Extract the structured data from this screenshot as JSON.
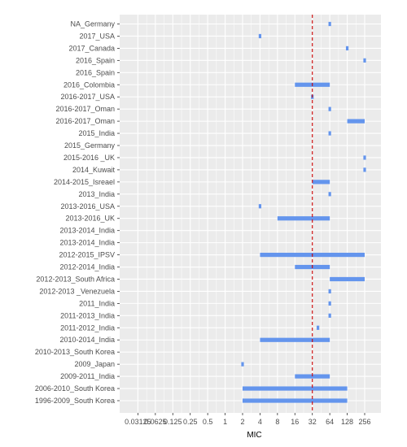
{
  "chart_data": {
    "type": "range-bar",
    "xlabel": "MIC",
    "ylabel": "",
    "title": "",
    "x_scale": "log2",
    "x_ticks": [
      {
        "value": 0.03125,
        "label": "0.03125"
      },
      {
        "value": 0.0625,
        "label": "0.0625"
      },
      {
        "value": 0.125,
        "label": "0.125"
      },
      {
        "value": 0.25,
        "label": "0.25"
      },
      {
        "value": 0.5,
        "label": "0.5"
      },
      {
        "value": 1,
        "label": "1"
      },
      {
        "value": 2,
        "label": "2"
      },
      {
        "value": 4,
        "label": "4"
      },
      {
        "value": 8,
        "label": "8"
      },
      {
        "value": 16,
        "label": "16"
      },
      {
        "value": 32,
        "label": "32"
      },
      {
        "value": 64,
        "label": "64"
      },
      {
        "value": 128,
        "label": "128"
      },
      {
        "value": 256,
        "label": "256"
      }
    ],
    "xlim": [
      0.0156,
      512
    ],
    "reference_line": {
      "value": 32,
      "color": "#cc0000",
      "style": "dashed"
    },
    "bar_color": "#6495ED",
    "grid": true,
    "panel_color": "#EBEBEB",
    "categories": [
      {
        "label": "NA_Germany",
        "min": 64,
        "max": 64
      },
      {
        "label": "2017_USA",
        "min": 4,
        "max": 4
      },
      {
        "label": "2017_Canada",
        "min": 128,
        "max": 128
      },
      {
        "label": "2016_Spain",
        "min": 256,
        "max": 256
      },
      {
        "label": "2016_Spain",
        "min": null,
        "max": null
      },
      {
        "label": "2016_Colombia",
        "min": 16,
        "max": 64
      },
      {
        "label": "2016-2017_USA",
        "min": 32,
        "max": 32
      },
      {
        "label": "2016-2017_Oman",
        "min": 64,
        "max": 64
      },
      {
        "label": "2016-2017_Oman",
        "min": 128,
        "max": 256
      },
      {
        "label": "2015_India",
        "min": 64,
        "max": 64
      },
      {
        "label": "2015_Germany",
        "min": null,
        "max": null
      },
      {
        "label": "2015-2016 _UK",
        "min": 256,
        "max": 256
      },
      {
        "label": "2014_Kuwait",
        "min": 256,
        "max": 256
      },
      {
        "label": "2014-2015_Isreael",
        "min": 32,
        "max": 64
      },
      {
        "label": "2013_India",
        "min": 64,
        "max": 64
      },
      {
        "label": "2013-2016_USA",
        "min": 4,
        "max": 4
      },
      {
        "label": "2013-2016_UK",
        "min": 8,
        "max": 64
      },
      {
        "label": "2013-2014_India",
        "min": null,
        "max": null
      },
      {
        "label": "2013-2014_India",
        "min": null,
        "max": null
      },
      {
        "label": "2012-2015_IPSV",
        "min": 4,
        "max": 256
      },
      {
        "label": "2012-2014_India",
        "min": 16,
        "max": 64
      },
      {
        "label": "2012-2013_South Africa",
        "min": 64,
        "max": 256
      },
      {
        "label": "2012-2013 _Venezuela",
        "min": 64,
        "max": 64
      },
      {
        "label": "2011_India",
        "min": 64,
        "max": 64
      },
      {
        "label": "2011-2013_India",
        "min": 64,
        "max": 64
      },
      {
        "label": "2011-2012_India",
        "min": 40,
        "max": 40
      },
      {
        "label": "2010-2014_India",
        "min": 4,
        "max": 64
      },
      {
        "label": "2010-2013_South Korea",
        "min": null,
        "max": null
      },
      {
        "label": "2009_Japan",
        "min": 2,
        "max": 2
      },
      {
        "label": "2009-2011_India",
        "min": 16,
        "max": 64
      },
      {
        "label": "2006-2010_South Korea",
        "min": 2,
        "max": 128
      },
      {
        "label": "1996-2009_South Korea",
        "min": 2,
        "max": 128
      }
    ]
  }
}
